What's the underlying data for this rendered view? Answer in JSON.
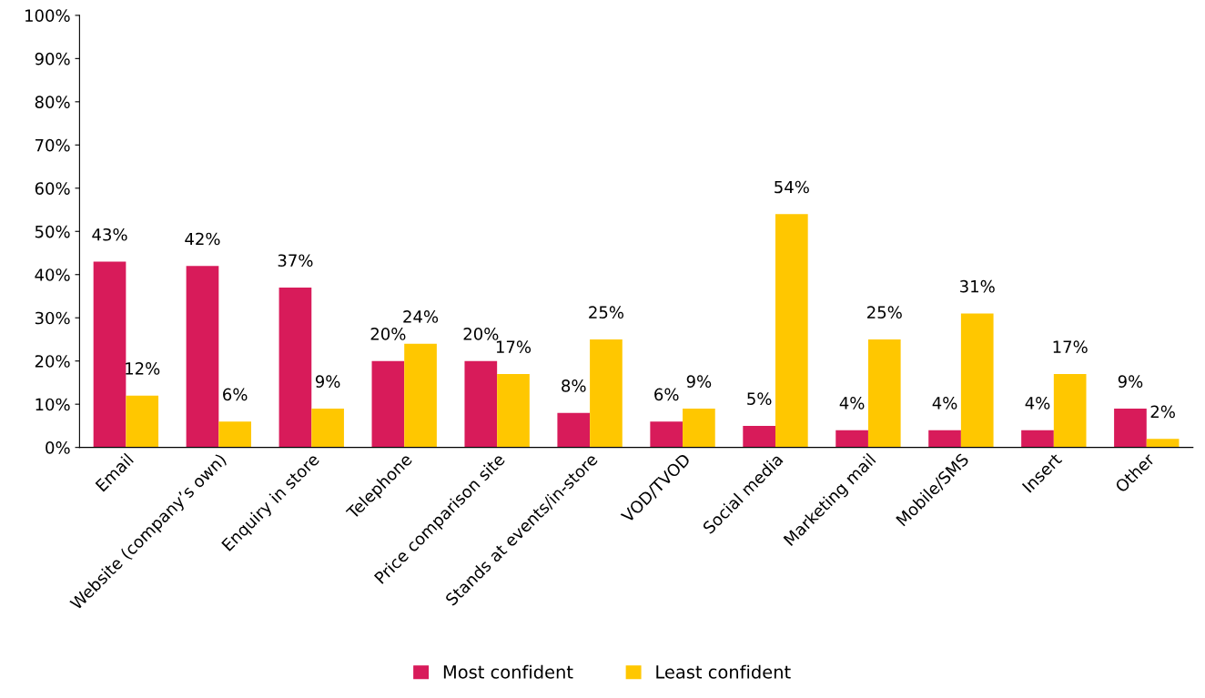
{
  "chart_data": {
    "type": "bar",
    "categories": [
      "Email",
      "Website (company’s own)",
      "Enquiry in store",
      "Telephone",
      "Price comparison site",
      "Stands at events/in-store",
      "VOD/TVOD",
      "Social media",
      "Marketing mail",
      "Mobile/SMS",
      "Insert",
      "Other"
    ],
    "series": [
      {
        "name": "Most confident",
        "color": "#d81b5a",
        "values": [
          43,
          42,
          37,
          20,
          20,
          8,
          6,
          5,
          4,
          4,
          4,
          9
        ],
        "value_labels": [
          "43%",
          "42%",
          "37%",
          "20%",
          "20%",
          "8%",
          "6%",
          "5%",
          "4%",
          "4%",
          "4%",
          "9%"
        ]
      },
      {
        "name": "Least confident",
        "color": "#ffc700",
        "values": [
          12,
          6,
          9,
          24,
          17,
          25,
          9,
          54,
          25,
          31,
          17,
          2
        ],
        "value_labels": [
          "12%",
          "6%",
          "9%",
          "24%",
          "17%",
          "25%",
          "9%",
          "54%",
          "25%",
          "31%",
          "17%",
          "2%"
        ]
      }
    ],
    "ylim": [
      0,
      100
    ],
    "yticks": [
      {
        "value": 0,
        "label": "0%"
      },
      {
        "value": 10,
        "label": "10%"
      },
      {
        "value": 20,
        "label": "20%"
      },
      {
        "value": 30,
        "label": "30%"
      },
      {
        "value": 40,
        "label": "40%"
      },
      {
        "value": 50,
        "label": "50%"
      },
      {
        "value": 60,
        "label": "60%"
      },
      {
        "value": 70,
        "label": "70%"
      },
      {
        "value": 80,
        "label": "80%"
      },
      {
        "value": 90,
        "label": "90%"
      },
      {
        "value": 100,
        "label": "100%"
      }
    ],
    "grid": false,
    "legend": "bottom"
  }
}
